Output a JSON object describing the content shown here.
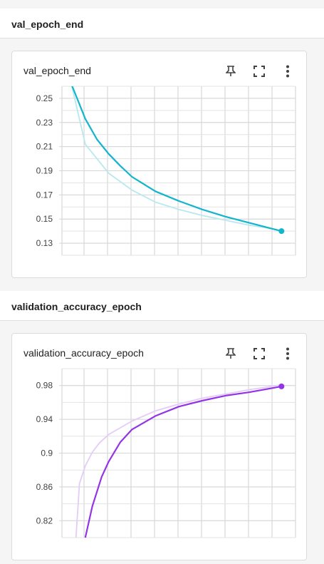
{
  "sections": [
    {
      "header": "val_epoch_end",
      "card_title": "val_epoch_end"
    },
    {
      "header": "validation_accuracy_epoch",
      "card_title": "validation_accuracy_epoch"
    }
  ],
  "toolbar_icons": [
    "pin-icon",
    "fullscreen-icon",
    "more-vert-icon"
  ],
  "colors": {
    "loss": "#12b5cb",
    "loss_smoothed_bg": "#b8e8ef",
    "acc": "#9334e6",
    "acc_bg": "#e3ccf7",
    "grid": "#e6e6e6"
  },
  "chart_data": [
    {
      "type": "line",
      "title": "val_epoch_end",
      "ylim": [
        0.12,
        0.26
      ],
      "xlim": [
        0,
        10
      ],
      "yticks": [
        "0.25",
        "0.23",
        "0.21",
        "0.19",
        "0.17",
        "0.15",
        "0.13"
      ],
      "grid": true,
      "series": [
        {
          "role": "raw",
          "x": [
            0.4,
            1.0,
            2.0,
            3.0,
            4.0,
            5.0,
            6.0,
            7.0,
            8.0,
            9.0,
            9.4
          ],
          "y": [
            0.262,
            0.212,
            0.188,
            0.174,
            0.164,
            0.158,
            0.153,
            0.149,
            0.145,
            0.142,
            0.14
          ]
        },
        {
          "role": "smoothed",
          "x": [
            0.4,
            1.0,
            1.5,
            2.0,
            2.5,
            3.0,
            4.0,
            5.0,
            6.0,
            7.0,
            8.0,
            9.0,
            9.4
          ],
          "y": [
            0.262,
            0.233,
            0.216,
            0.204,
            0.194,
            0.185,
            0.173,
            0.165,
            0.158,
            0.152,
            0.147,
            0.142,
            0.14
          ]
        }
      ]
    },
    {
      "type": "line",
      "title": "validation_accuracy_epoch",
      "ylim": [
        0.8,
        1.0
      ],
      "xlim": [
        0,
        10
      ],
      "yticks": [
        "0.98",
        "0.94",
        "0.9",
        "0.86",
        "0.82"
      ],
      "grid": true,
      "series": [
        {
          "role": "raw",
          "x": [
            0.6,
            0.75,
            1.0,
            1.3,
            1.6,
            2.0,
            3.0,
            4.0,
            5.0,
            6.0,
            7.0,
            8.0,
            9.0,
            9.4
          ],
          "y": [
            0.8,
            0.864,
            0.885,
            0.901,
            0.912,
            0.922,
            0.938,
            0.95,
            0.958,
            0.965,
            0.97,
            0.975,
            0.979,
            0.981
          ]
        },
        {
          "role": "smoothed",
          "x": [
            1.0,
            1.3,
            1.7,
            2.0,
            2.5,
            3.0,
            4.0,
            5.0,
            6.0,
            7.0,
            8.0,
            9.0,
            9.4
          ],
          "y": [
            0.8,
            0.837,
            0.872,
            0.89,
            0.913,
            0.928,
            0.944,
            0.955,
            0.962,
            0.968,
            0.972,
            0.977,
            0.979
          ]
        }
      ]
    }
  ]
}
